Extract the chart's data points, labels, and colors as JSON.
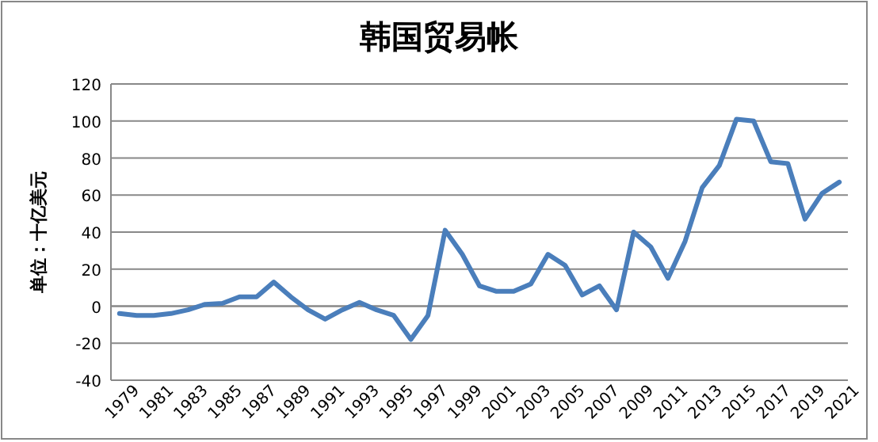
{
  "chart_data": {
    "type": "line",
    "title": "韩国贸易帐",
    "ylabel": "单位：十亿美元",
    "categories": [
      "1979",
      null,
      "1981",
      null,
      "1983",
      null,
      "1985",
      null,
      "1987",
      null,
      "1989",
      null,
      "1991",
      null,
      "1993",
      null,
      "1995",
      null,
      "1997",
      null,
      "1999",
      null,
      "2001",
      null,
      "2003",
      null,
      "2005",
      null,
      "2007",
      null,
      "2009",
      null,
      "2011",
      null,
      "2013",
      null,
      "2015",
      null,
      "2017",
      null,
      "2019",
      null,
      "2021"
    ],
    "values": [
      -4,
      -5,
      -5,
      -4,
      -2,
      1,
      1.5,
      5,
      5,
      13,
      5,
      -2,
      -7,
      -2,
      2,
      -2,
      -5,
      -18,
      -5,
      41,
      28,
      11,
      8,
      8,
      12,
      28,
      22,
      6,
      11,
      -2,
      40,
      32,
      15,
      35,
      64,
      76,
      101,
      100,
      78,
      77,
      47,
      61,
      67
    ],
    "color": "#4a7ebb",
    "ylim": [
      -40,
      120
    ],
    "yticks": [
      -40,
      -20,
      0,
      20,
      40,
      60,
      80,
      100,
      120
    ],
    "grid": "y",
    "line_style": "solid"
  }
}
